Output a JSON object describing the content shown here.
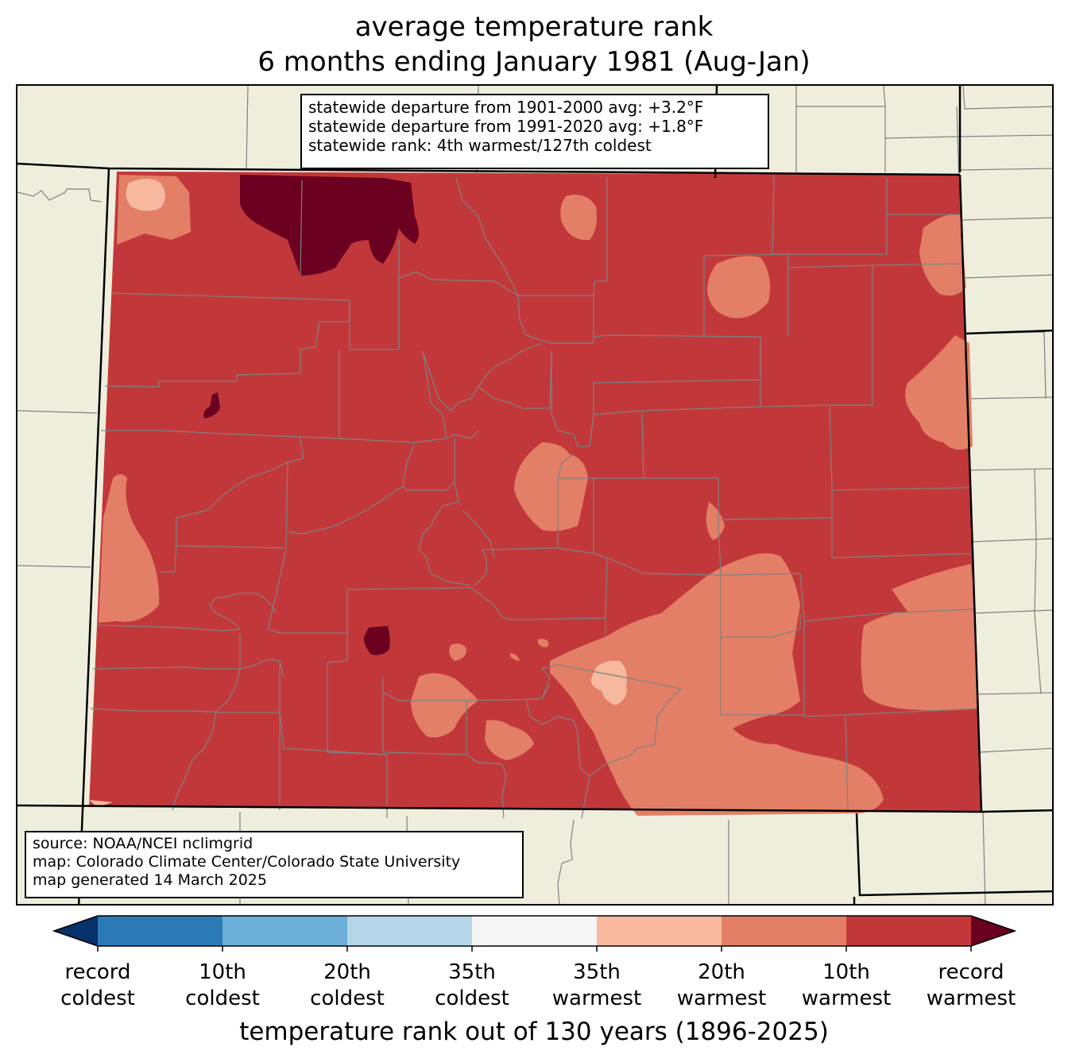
{
  "title": {
    "line1": "average temperature rank",
    "line2": "6 months ending January 1981 (Aug-Jan)"
  },
  "stats": {
    "departure_1901_2000": "statewide departure from 1901-2000 avg: +3.2°F",
    "departure_1991_2020": "statewide departure from 1991-2020 avg: +1.8°F",
    "rank": "statewide rank: 4th warmest/127th coldest"
  },
  "source": {
    "line1": "source: NOAA/NCEI nclimgrid",
    "line2": "map: Colorado Climate Center/Colorado State University",
    "line3": "map generated 14 March 2025"
  },
  "colorbar": {
    "colors": [
      "#08306b",
      "#2c7bb6",
      "#6baed6",
      "#b4d5e8",
      "#f5f5f5",
      "#f6b89e",
      "#e37f66",
      "#c2383a",
      "#6b0020"
    ],
    "ticks": [
      {
        "line1": "record",
        "line2": "coldest"
      },
      {
        "line1": "10th",
        "line2": "coldest"
      },
      {
        "line1": "20th",
        "line2": "coldest"
      },
      {
        "line1": "35th",
        "line2": "coldest"
      },
      {
        "line1": "35th",
        "line2": "warmest"
      },
      {
        "line1": "20th",
        "line2": "warmest"
      },
      {
        "line1": "10th",
        "line2": "warmest"
      },
      {
        "line1": "record",
        "line2": "warmest"
      }
    ],
    "xlabel": "temperature rank out of 130 years (1896-2025)"
  },
  "map_colors": {
    "land_background": "#efeedd",
    "category_10th_warmest": "#c2383a",
    "category_20th_warmest": "#e37f66",
    "category_35th_warmest": "#f6b89e",
    "category_record_warmest": "#6b0020",
    "county_lines": "#808080",
    "state_lines": "#000000"
  }
}
